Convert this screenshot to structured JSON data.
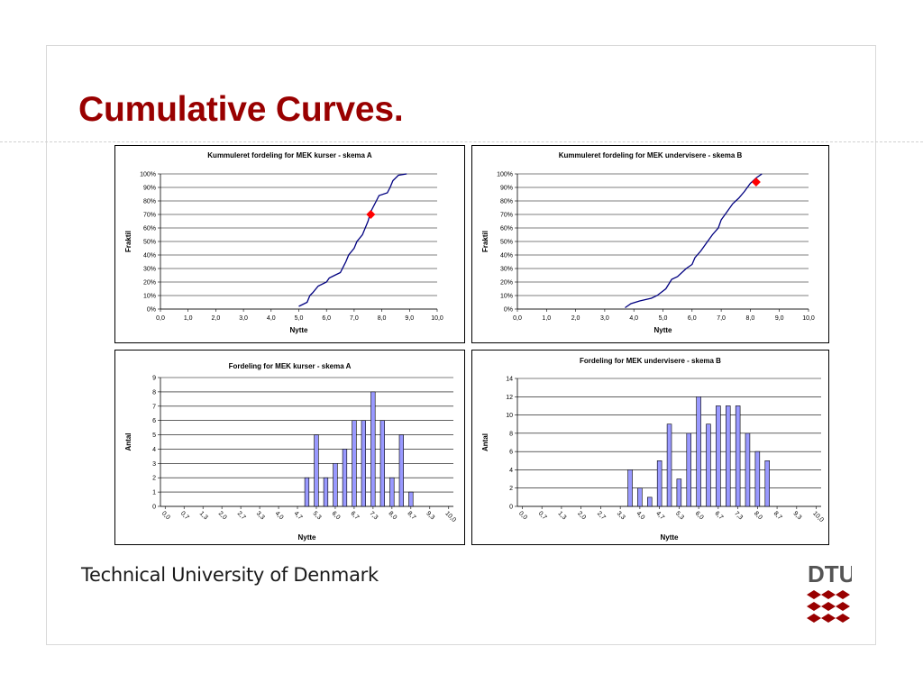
{
  "slide": {
    "title": "Cumulative Curves.",
    "footer": "Technical University of Denmark",
    "logo_text": "DTU",
    "accent_color": "#990000"
  },
  "chart_data": [
    {
      "type": "line",
      "title": "Kummuleret fordeling for MEK kurser - skema A",
      "xlabel": "Nytte",
      "ylabel": "Fraktil",
      "xlim": [
        0,
        10
      ],
      "ylim": [
        0,
        1
      ],
      "x_ticks": [
        "0,0",
        "1,0",
        "2,0",
        "3,0",
        "4,0",
        "5,0",
        "6,0",
        "7,0",
        "8,0",
        "9,0",
        "10,0"
      ],
      "y_ticks": [
        "0%",
        "10%",
        "20%",
        "30%",
        "40%",
        "50%",
        "60%",
        "70%",
        "80%",
        "90%",
        "100%"
      ],
      "grid": "horizontal",
      "line_color": "#000080",
      "x": [
        5.0,
        5.3,
        5.4,
        5.5,
        5.7,
        6.0,
        6.1,
        6.3,
        6.5,
        6.7,
        6.8,
        7.0,
        7.1,
        7.3,
        7.4,
        7.5,
        7.6,
        7.8,
        7.9,
        8.2,
        8.3,
        8.4,
        8.6,
        8.9
      ],
      "y": [
        0.02,
        0.05,
        0.1,
        0.12,
        0.17,
        0.2,
        0.23,
        0.25,
        0.27,
        0.35,
        0.4,
        0.45,
        0.5,
        0.55,
        0.6,
        0.65,
        0.72,
        0.8,
        0.84,
        0.86,
        0.9,
        0.95,
        0.99,
        1.0
      ],
      "marker": {
        "x": 7.6,
        "y": 0.7,
        "color": "#ff0000"
      }
    },
    {
      "type": "line",
      "title": "Kummuleret fordeling for MEK undervisere - skema B",
      "xlabel": "Nytte",
      "ylabel": "Fraktil",
      "xlim": [
        0,
        10
      ],
      "ylim": [
        0,
        1
      ],
      "x_ticks": [
        "0,0",
        "1,0",
        "2,0",
        "3,0",
        "4,0",
        "5,0",
        "6,0",
        "7,0",
        "8,0",
        "9,0",
        "10,0"
      ],
      "y_ticks": [
        "0%",
        "10%",
        "20%",
        "30%",
        "40%",
        "50%",
        "60%",
        "70%",
        "80%",
        "90%",
        "100%"
      ],
      "grid": "horizontal",
      "line_color": "#000080",
      "x": [
        3.7,
        3.9,
        4.2,
        4.6,
        4.8,
        5.1,
        5.3,
        5.5,
        5.8,
        6.0,
        6.1,
        6.3,
        6.5,
        6.7,
        6.9,
        7.0,
        7.2,
        7.4,
        7.6,
        7.8,
        8.0,
        8.2,
        8.4
      ],
      "y": [
        0.01,
        0.04,
        0.06,
        0.08,
        0.1,
        0.15,
        0.22,
        0.24,
        0.3,
        0.33,
        0.38,
        0.43,
        0.49,
        0.55,
        0.6,
        0.66,
        0.72,
        0.78,
        0.82,
        0.87,
        0.93,
        0.97,
        1.0
      ],
      "marker": {
        "x": 8.2,
        "y": 0.94,
        "color": "#ff0000"
      }
    },
    {
      "type": "bar",
      "title": "Fordeling for MEK kurser - skema A",
      "xlabel": "Nytte",
      "ylabel": "Antal",
      "ylim": [
        0,
        9
      ],
      "y_ticks": [
        "0",
        "1",
        "2",
        "3",
        "4",
        "5",
        "6",
        "7",
        "8",
        "9"
      ],
      "x_ticks": [
        "0,0",
        "0,7",
        "1,3",
        "2,0",
        "2,7",
        "3,3",
        "4,0",
        "4,7",
        "5,3",
        "6,0",
        "6,7",
        "7,3",
        "8,0",
        "8,7",
        "9,3",
        "10,0"
      ],
      "grid": "horizontal",
      "bar_color": "#9999ff",
      "bin_count": 31,
      "values": [
        0,
        0,
        0,
        0,
        0,
        0,
        0,
        0,
        0,
        0,
        0,
        0,
        0,
        0,
        0,
        0,
        0,
        0,
        0,
        0,
        0,
        0,
        0,
        0,
        0,
        0,
        0,
        0,
        0,
        0,
        0
      ],
      "nonzero": {
        "15": 2,
        "16": 5,
        "17": 2,
        "18": 3,
        "19": 4,
        "20": 6,
        "21": 6,
        "22": 8,
        "23": 6,
        "24": 2,
        "25": 5,
        "26": 1
      }
    },
    {
      "type": "bar",
      "title": "Fordeling for MEK undervisere - skema B",
      "xlabel": "Nytte",
      "ylabel": "Antal",
      "ylim": [
        0,
        14
      ],
      "y_ticks": [
        "0",
        "2",
        "4",
        "6",
        "8",
        "10",
        "12",
        "14"
      ],
      "x_ticks": [
        "0,0",
        "0,7",
        "1,3",
        "2,0",
        "2,7",
        "3,3",
        "4,0",
        "4,7",
        "5,3",
        "6,0",
        "6,7",
        "7,3",
        "8,0",
        "8,7",
        "9,3",
        "10,0"
      ],
      "grid": "horizontal",
      "bar_color": "#9999ff",
      "bin_count": 31,
      "values": [
        0,
        0,
        0,
        0,
        0,
        0,
        0,
        0,
        0,
        0,
        0,
        0,
        0,
        0,
        0,
        0,
        0,
        0,
        0,
        0,
        0,
        0,
        0,
        0,
        0,
        0,
        0,
        0,
        0,
        0,
        0
      ],
      "nonzero": {
        "11": 4,
        "12": 2,
        "13": 1,
        "14": 5,
        "15": 9,
        "16": 3,
        "17": 8,
        "18": 12,
        "19": 9,
        "20": 11,
        "21": 11,
        "22": 11,
        "23": 8,
        "24": 6,
        "25": 5
      }
    }
  ]
}
